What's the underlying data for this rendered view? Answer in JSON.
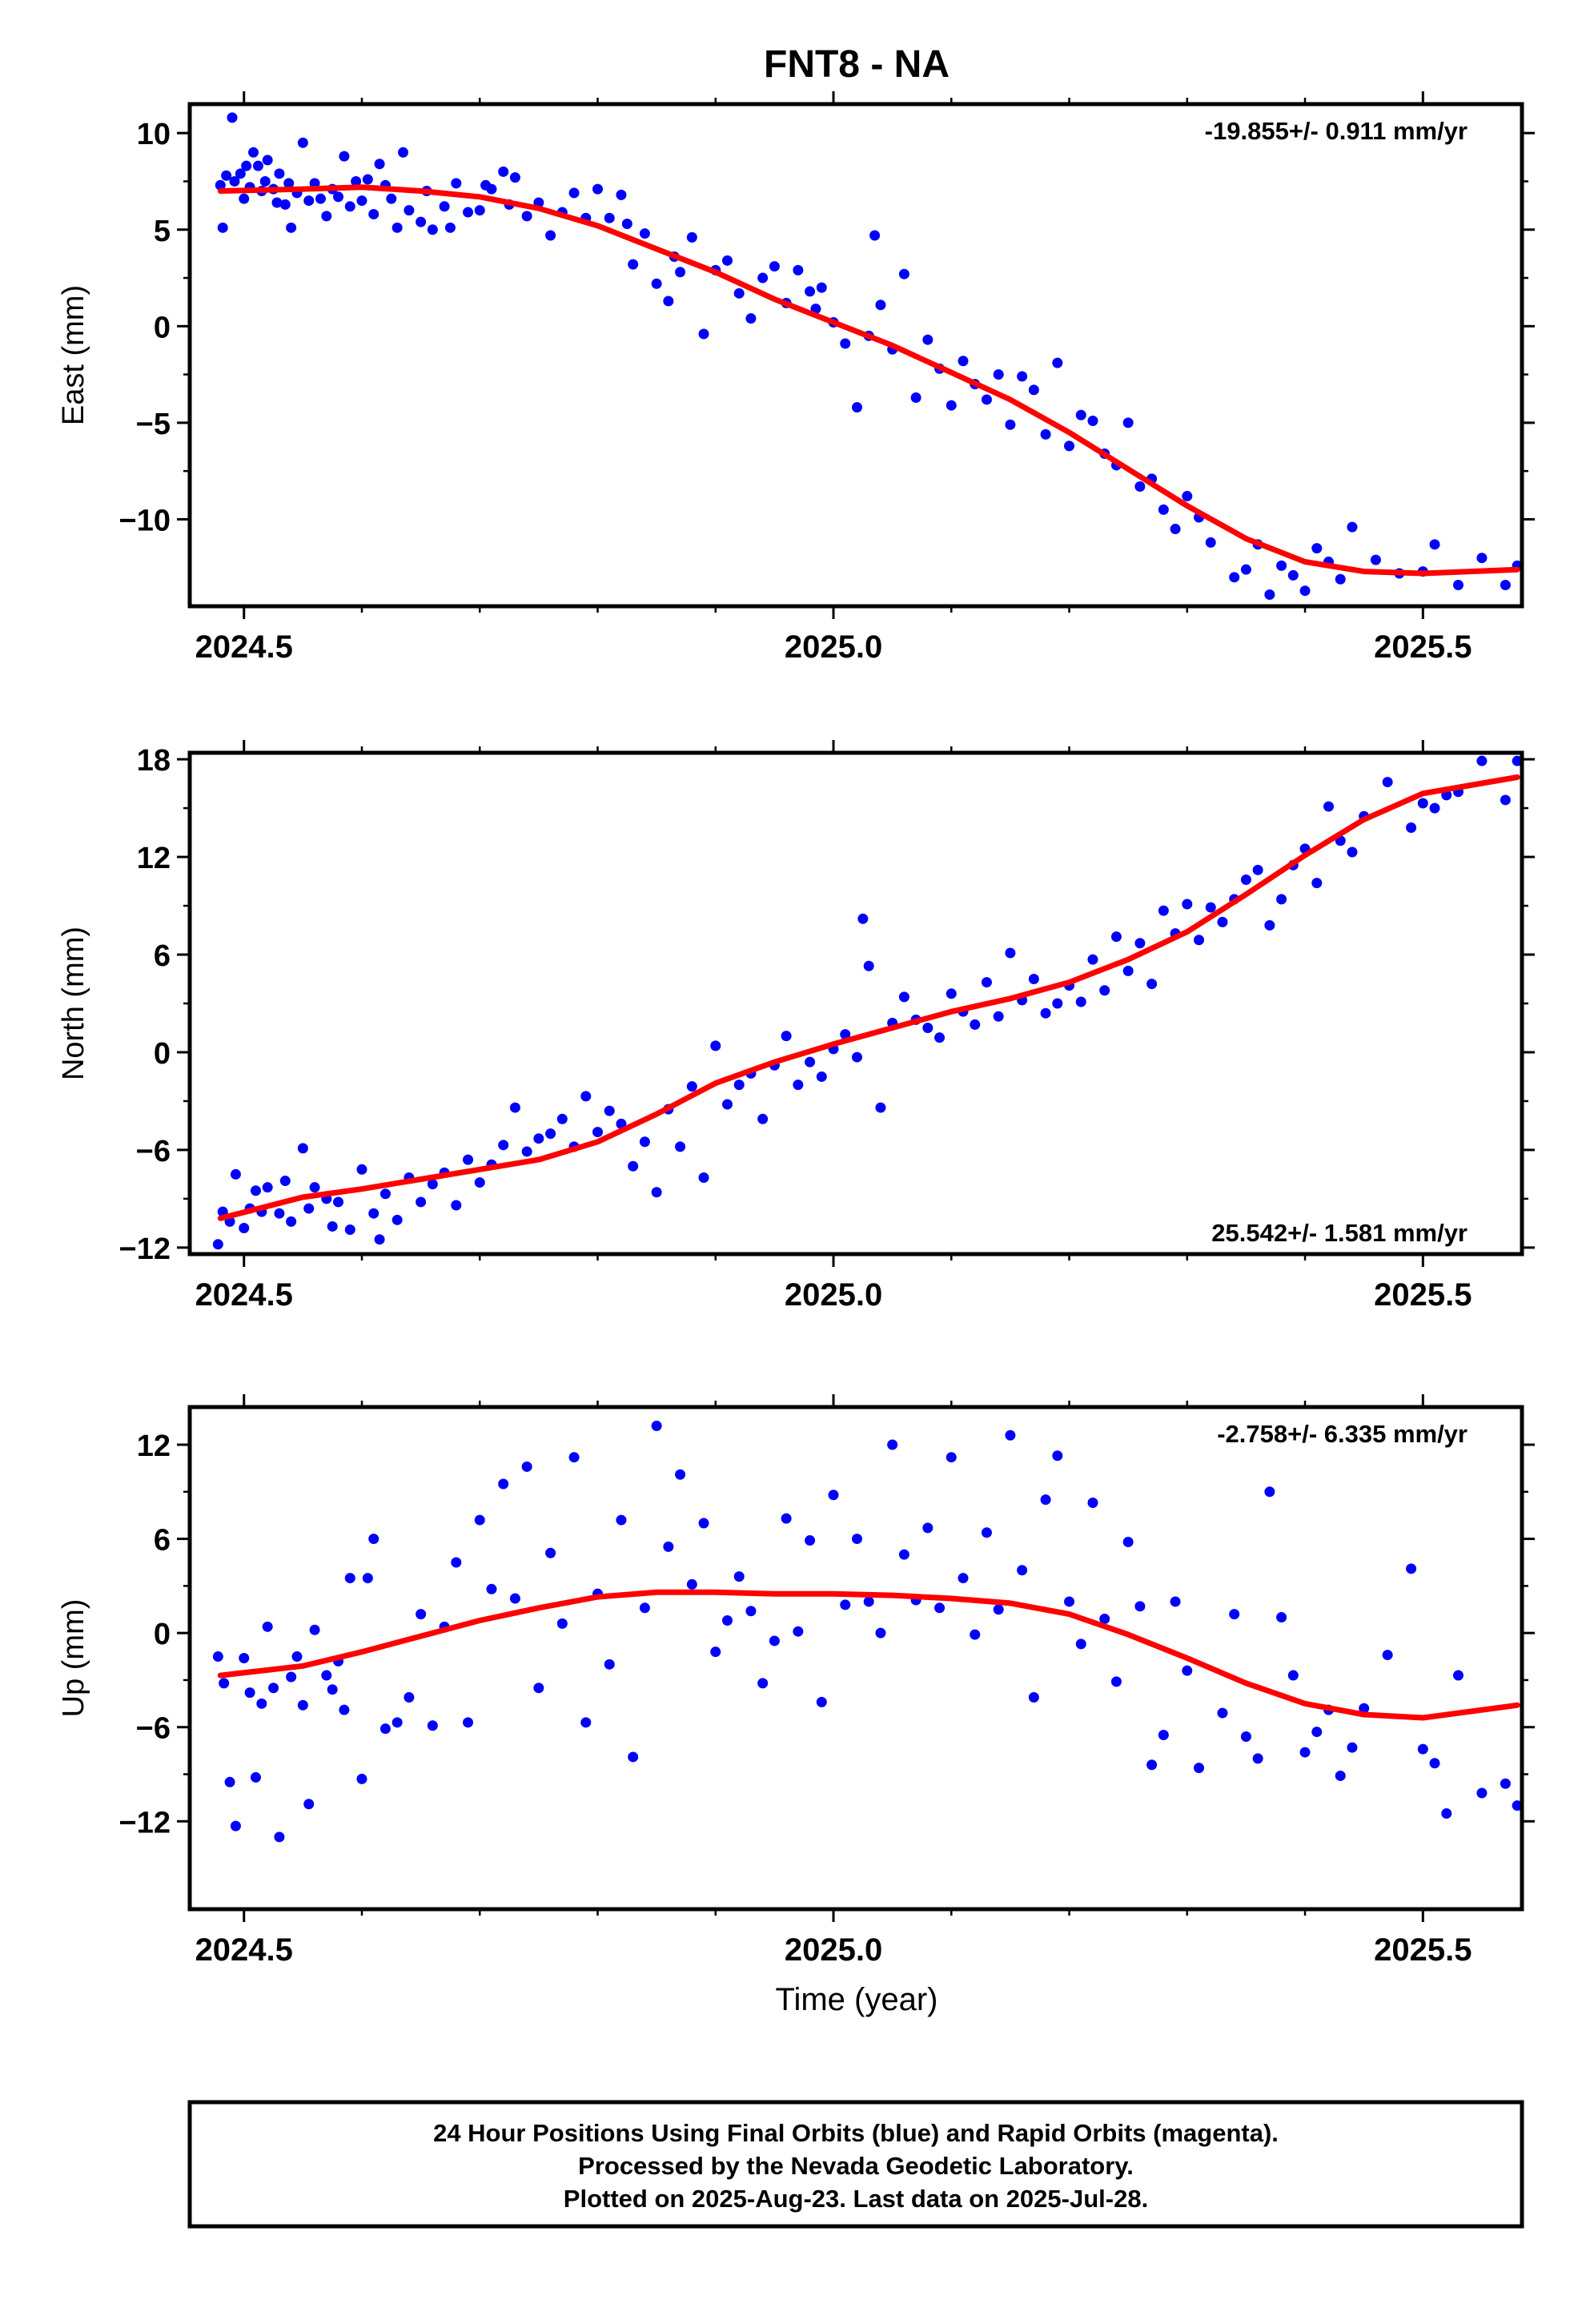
{
  "title": "FNT8 - NA",
  "x_axis_label": "Time (year)",
  "colors": {
    "final_orbits": "#0000ff",
    "rapid_orbits": "#ff00ff",
    "model": "#ff0000",
    "frame": "#000000"
  },
  "footer": {
    "line1": "24 Hour Positions Using Final Orbits (blue) and Rapid Orbits (magenta).",
    "line2": "Processed by the Nevada Geodetic Laboratory.",
    "line3": "Plotted on 2025-Aug-23. Last data on 2025-Jul-28."
  },
  "chart_data": [
    {
      "type": "scatter",
      "ylabel": "East (mm)",
      "rate_text": "-19.855+/- 0.911 mm/yr",
      "xlim": [
        2024.454,
        2025.584
      ],
      "ylim": [
        -14.5,
        11.5
      ],
      "xticks": [
        2024.5,
        2025.0,
        2025.5
      ],
      "xtick_labels": [
        "2024.5",
        "2025.0",
        "2025.5"
      ],
      "yticks": [
        10,
        5,
        0,
        -5,
        -10
      ],
      "ytick_labels": [
        "10",
        "5",
        "0",
        "−5",
        "−10"
      ],
      "grid": false,
      "model_x": [
        2024.48,
        2024.55,
        2024.6,
        2024.65,
        2024.7,
        2024.75,
        2024.8,
        2024.85,
        2024.9,
        2024.95,
        2025.0,
        2025.05,
        2025.1,
        2025.15,
        2025.2,
        2025.25,
        2025.3,
        2025.35,
        2025.4,
        2025.45,
        2025.5,
        2025.58
      ],
      "model_y": [
        7.0,
        7.1,
        7.2,
        7.0,
        6.7,
        6.1,
        5.2,
        4.0,
        2.8,
        1.4,
        0.2,
        -1.0,
        -2.4,
        -3.8,
        -5.5,
        -7.4,
        -9.3,
        -11.0,
        -12.2,
        -12.7,
        -12.8,
        -12.6
      ],
      "final_x": [
        2024.48,
        2024.482,
        2024.485,
        2024.49,
        2024.492,
        2024.497,
        2024.5,
        2024.502,
        2024.505,
        2024.508,
        2024.512,
        2024.515,
        2024.518,
        2024.52,
        2024.525,
        2024.528,
        2024.53,
        2024.535,
        2024.538,
        2024.54,
        2024.545,
        2024.55,
        2024.555,
        2024.56,
        2024.565,
        2024.57,
        2024.575,
        2024.58,
        2024.585,
        2024.59,
        2024.595,
        2024.6,
        2024.605,
        2024.61,
        2024.615,
        2024.62,
        2024.625,
        2024.63,
        2024.635,
        2024.64,
        2024.65,
        2024.655,
        2024.66,
        2024.67,
        2024.675,
        2024.68,
        2024.69,
        2024.7,
        2024.705,
        2024.71,
        2024.72,
        2024.725,
        2024.73,
        2024.74,
        2024.75,
        2024.76,
        2024.77,
        2024.78,
        2024.79,
        2024.8,
        2024.81,
        2024.82,
        2024.825,
        2024.83,
        2024.84,
        2024.85,
        2024.86,
        2024.865,
        2024.87,
        2024.88,
        2024.89,
        2024.9,
        2024.91,
        2024.92,
        2024.93,
        2024.94,
        2024.95,
        2024.96,
        2024.97,
        2024.98,
        2024.985,
        2024.99,
        2025.0,
        2025.01,
        2025.02,
        2025.03,
        2025.035,
        2025.04,
        2025.05,
        2025.06,
        2025.07,
        2025.08,
        2025.09,
        2025.1,
        2025.11,
        2025.12,
        2025.13,
        2025.14,
        2025.15,
        2025.16,
        2025.17,
        2025.18,
        2025.19,
        2025.2,
        2025.21,
        2025.22,
        2025.23,
        2025.24,
        2025.25,
        2025.26,
        2025.27,
        2025.28,
        2025.29,
        2025.3,
        2025.31,
        2025.32,
        2025.34,
        2025.35,
        2025.36,
        2025.37,
        2025.38,
        2025.39,
        2025.4,
        2025.41,
        2025.42,
        2025.43,
        2025.44,
        2025.46,
        2025.48,
        2025.5,
        2025.51,
        2025.53,
        2025.55,
        2025.57,
        2025.58
      ],
      "final_y": [
        7.3,
        5.1,
        7.8,
        10.8,
        7.5,
        7.9,
        6.6,
        8.3,
        7.2,
        9.0,
        8.3,
        7.0,
        7.5,
        8.6,
        7.1,
        6.4,
        7.9,
        6.3,
        7.4,
        5.1,
        6.9,
        9.5,
        6.5,
        7.4,
        6.6,
        5.7,
        7.1,
        6.7,
        8.8,
        6.2,
        7.5,
        6.5,
        7.6,
        5.8,
        8.4,
        7.3,
        6.6,
        5.1,
        9.0,
        6.0,
        5.4,
        7.0,
        5.0,
        6.2,
        5.1,
        7.4,
        5.9,
        6.0,
        7.3,
        7.1,
        8.0,
        6.3,
        7.7,
        5.7,
        6.4,
        4.7,
        5.9,
        6.9,
        5.6,
        7.1,
        5.6,
        6.8,
        5.3,
        3.2,
        4.8,
        2.2,
        1.3,
        3.6,
        2.8,
        4.6,
        -0.4,
        2.9,
        3.4,
        1.7,
        0.4,
        2.5,
        3.1,
        1.2,
        2.9,
        1.8,
        0.9,
        2.0,
        0.2,
        -0.9,
        -4.2,
        -0.5,
        4.7,
        1.1,
        -1.2,
        2.7,
        -3.7,
        -0.7,
        -2.2,
        -4.1,
        -1.8,
        -3.0,
        -3.8,
        -2.5,
        -5.1,
        -2.6,
        -3.3,
        -5.6,
        -1.9,
        -6.2,
        -4.6,
        -4.9,
        -6.6,
        -7.2,
        -5.0,
        -8.3,
        -7.9,
        -9.5,
        -10.5,
        -8.8,
        -9.9,
        -11.2,
        -13.0,
        -12.6,
        -11.3,
        -13.9,
        -12.4,
        -12.9,
        -13.7,
        -11.5,
        -12.2,
        -13.1,
        -10.4,
        -12.1,
        -12.8,
        -12.7,
        -11.3,
        -13.4,
        -12.0,
        -13.4,
        -12.4
      ]
    },
    {
      "type": "scatter",
      "ylabel": "North (mm)",
      "rate_text": "25.542+/- 1.581 mm/yr",
      "xlim": [
        2024.454,
        2025.584
      ],
      "ylim": [
        -12.4,
        18.4
      ],
      "xticks": [
        2024.5,
        2025.0,
        2025.5
      ],
      "xtick_labels": [
        "2024.5",
        "2025.0",
        "2025.5"
      ],
      "yticks": [
        18,
        12,
        6,
        0,
        -6,
        -12
      ],
      "ytick_labels": [
        "18",
        "12",
        "6",
        "0",
        "−6",
        "−12"
      ],
      "grid": false,
      "model_x": [
        2024.48,
        2024.55,
        2024.6,
        2024.65,
        2024.7,
        2024.75,
        2024.8,
        2024.85,
        2024.9,
        2024.95,
        2025.0,
        2025.05,
        2025.1,
        2025.15,
        2025.2,
        2025.25,
        2025.3,
        2025.35,
        2025.4,
        2025.45,
        2025.5,
        2025.58
      ],
      "model_y": [
        -10.2,
        -8.9,
        -8.4,
        -7.8,
        -7.2,
        -6.6,
        -5.5,
        -3.8,
        -1.9,
        -0.6,
        0.5,
        1.5,
        2.5,
        3.3,
        4.3,
        5.7,
        7.4,
        9.7,
        12.1,
        14.3,
        15.9,
        16.9
      ],
      "final_x": [
        2024.478,
        2024.482,
        2024.488,
        2024.493,
        2024.5,
        2024.505,
        2024.51,
        2024.515,
        2024.52,
        2024.53,
        2024.535,
        2024.54,
        2024.55,
        2024.555,
        2024.56,
        2024.57,
        2024.575,
        2024.58,
        2024.59,
        2024.6,
        2024.61,
        2024.615,
        2024.62,
        2024.63,
        2024.64,
        2024.65,
        2024.66,
        2024.67,
        2024.68,
        2024.69,
        2024.7,
        2024.71,
        2024.72,
        2024.73,
        2024.74,
        2024.75,
        2024.76,
        2024.77,
        2024.78,
        2024.79,
        2024.8,
        2024.81,
        2024.82,
        2024.83,
        2024.84,
        2024.85,
        2024.86,
        2024.87,
        2024.88,
        2024.89,
        2024.9,
        2024.91,
        2024.92,
        2024.93,
        2024.94,
        2024.95,
        2024.96,
        2024.97,
        2024.98,
        2024.99,
        2025.0,
        2025.01,
        2025.02,
        2025.025,
        2025.03,
        2025.04,
        2025.05,
        2025.06,
        2025.07,
        2025.08,
        2025.09,
        2025.1,
        2025.11,
        2025.12,
        2025.13,
        2025.14,
        2025.15,
        2025.16,
        2025.17,
        2025.18,
        2025.19,
        2025.2,
        2025.21,
        2025.22,
        2025.23,
        2025.24,
        2025.25,
        2025.26,
        2025.27,
        2025.28,
        2025.29,
        2025.3,
        2025.31,
        2025.32,
        2025.33,
        2025.34,
        2025.35,
        2025.36,
        2025.37,
        2025.38,
        2025.39,
        2025.4,
        2025.41,
        2025.42,
        2025.43,
        2025.44,
        2025.45,
        2025.47,
        2025.49,
        2025.5,
        2025.51,
        2025.52,
        2025.53,
        2025.55,
        2025.57,
        2025.58
      ],
      "final_y": [
        -11.8,
        -9.8,
        -10.4,
        -7.5,
        -10.8,
        -9.6,
        -8.5,
        -9.8,
        -8.3,
        -9.9,
        -7.9,
        -10.4,
        -5.9,
        -9.6,
        -8.3,
        -9.0,
        -10.7,
        -9.2,
        -10.9,
        -7.2,
        -9.9,
        -11.5,
        -8.7,
        -10.3,
        -7.7,
        -9.2,
        -8.1,
        -7.4,
        -9.4,
        -6.6,
        -8.0,
        -6.9,
        -5.7,
        -3.4,
        -6.1,
        -5.3,
        -5.0,
        -4.1,
        -5.8,
        -2.7,
        -4.9,
        -3.6,
        -4.4,
        -7.0,
        -5.5,
        -8.6,
        -3.5,
        -5.8,
        -2.1,
        -7.7,
        0.4,
        -3.2,
        -2.0,
        -1.3,
        -4.1,
        -0.8,
        1.0,
        -2.0,
        -0.6,
        -1.5,
        0.2,
        1.1,
        -0.3,
        8.2,
        5.3,
        -3.4,
        1.8,
        3.4,
        2.0,
        1.5,
        0.9,
        3.6,
        2.5,
        1.7,
        4.3,
        2.2,
        6.1,
        3.2,
        4.5,
        2.4,
        3.0,
        4.1,
        3.1,
        5.7,
        3.8,
        7.1,
        5.0,
        6.7,
        4.2,
        8.7,
        7.3,
        9.1,
        6.9,
        8.9,
        8.0,
        9.4,
        10.6,
        11.2,
        7.8,
        9.4,
        11.5,
        12.5,
        10.4,
        15.1,
        13.0,
        12.3,
        14.5,
        16.6,
        13.8,
        15.3,
        15.0,
        15.8,
        16.0,
        17.9,
        15.5,
        17.9
      ]
    },
    {
      "type": "scatter",
      "ylabel": "Up (mm)",
      "rate_text": "-2.758+/- 6.335 mm/yr",
      "xlim": [
        2024.454,
        2025.584
      ],
      "ylim": [
        -17.6,
        14.4
      ],
      "xticks": [
        2024.5,
        2025.0,
        2025.5
      ],
      "xtick_labels": [
        "2024.5",
        "2025.0",
        "2025.5"
      ],
      "yticks": [
        12,
        6,
        0,
        -6,
        -12
      ],
      "ytick_labels": [
        "12",
        "6",
        "0",
        "−6",
        "−12"
      ],
      "grid": false,
      "model_x": [
        2024.48,
        2024.55,
        2024.6,
        2024.65,
        2024.7,
        2024.75,
        2024.8,
        2024.85,
        2024.9,
        2024.95,
        2025.0,
        2025.05,
        2025.1,
        2025.15,
        2025.2,
        2025.25,
        2025.3,
        2025.35,
        2025.4,
        2025.45,
        2025.5,
        2025.58
      ],
      "model_y": [
        -2.7,
        -2.1,
        -1.2,
        -0.2,
        0.8,
        1.6,
        2.3,
        2.6,
        2.6,
        2.5,
        2.5,
        2.4,
        2.2,
        1.9,
        1.2,
        -0.1,
        -1.6,
        -3.2,
        -4.5,
        -5.2,
        -5.4,
        -4.6
      ],
      "final_x": [
        2024.478,
        2024.483,
        2024.488,
        2024.493,
        2024.5,
        2024.505,
        2024.51,
        2024.515,
        2024.52,
        2024.525,
        2024.53,
        2024.54,
        2024.545,
        2024.55,
        2024.555,
        2024.56,
        2024.57,
        2024.575,
        2024.58,
        2024.585,
        2024.59,
        2024.6,
        2024.605,
        2024.61,
        2024.62,
        2024.63,
        2024.64,
        2024.65,
        2024.66,
        2024.67,
        2024.68,
        2024.69,
        2024.7,
        2024.71,
        2024.72,
        2024.73,
        2024.74,
        2024.75,
        2024.76,
        2024.77,
        2024.78,
        2024.79,
        2024.8,
        2024.81,
        2024.82,
        2024.83,
        2024.84,
        2024.85,
        2024.86,
        2024.87,
        2024.88,
        2024.89,
        2024.9,
        2024.91,
        2024.92,
        2024.93,
        2024.94,
        2024.95,
        2024.96,
        2024.97,
        2024.98,
        2024.99,
        2025.0,
        2025.01,
        2025.02,
        2025.03,
        2025.04,
        2025.05,
        2025.06,
        2025.07,
        2025.08,
        2025.09,
        2025.1,
        2025.11,
        2025.12,
        2025.13,
        2025.14,
        2025.15,
        2025.16,
        2025.17,
        2025.18,
        2025.19,
        2025.2,
        2025.21,
        2025.22,
        2025.23,
        2025.24,
        2025.25,
        2025.26,
        2025.27,
        2025.28,
        2025.29,
        2025.3,
        2025.31,
        2025.33,
        2025.34,
        2025.35,
        2025.36,
        2025.37,
        2025.38,
        2025.39,
        2025.4,
        2025.41,
        2025.42,
        2025.43,
        2025.44,
        2025.45,
        2025.47,
        2025.49,
        2025.5,
        2025.51,
        2025.52,
        2025.53,
        2025.55,
        2025.57,
        2025.58
      ],
      "final_y": [
        -1.5,
        -3.2,
        -9.5,
        -12.3,
        -1.6,
        -3.8,
        -9.2,
        -4.5,
        0.4,
        -3.5,
        -13.0,
        -2.8,
        -1.5,
        -4.6,
        -10.9,
        0.2,
        -2.7,
        -3.6,
        -1.8,
        -4.9,
        3.5,
        -9.3,
        3.5,
        6.0,
        -6.1,
        -5.7,
        -4.1,
        1.2,
        -5.9,
        0.4,
        4.5,
        -5.7,
        7.2,
        2.8,
        9.5,
        2.2,
        10.6,
        -3.5,
        5.1,
        0.6,
        11.2,
        -5.7,
        2.5,
        -2.0,
        7.2,
        -7.9,
        1.6,
        13.2,
        5.5,
        10.1,
        3.1,
        7.0,
        -1.2,
        0.8,
        3.6,
        1.4,
        -3.2,
        -0.5,
        7.3,
        0.1,
        5.9,
        -4.4,
        8.8,
        1.8,
        6.0,
        2.0,
        0.0,
        12.0,
        5.0,
        2.1,
        6.7,
        1.6,
        11.2,
        3.5,
        -0.1,
        6.4,
        1.5,
        12.6,
        4.0,
        -4.1,
        8.5,
        11.3,
        2.0,
        -0.7,
        8.3,
        0.9,
        -3.1,
        5.8,
        1.7,
        -8.4,
        -6.5,
        2.0,
        -2.4,
        -8.6,
        -5.1,
        1.2,
        -6.6,
        -8.0,
        9.0,
        1.0,
        -2.7,
        -7.6,
        -6.3,
        -4.9,
        -9.1,
        -7.3,
        -4.8,
        -1.4,
        4.1,
        -7.4,
        -8.3,
        -11.5,
        -2.7,
        -10.2,
        -9.6,
        -11.0
      ]
    }
  ]
}
